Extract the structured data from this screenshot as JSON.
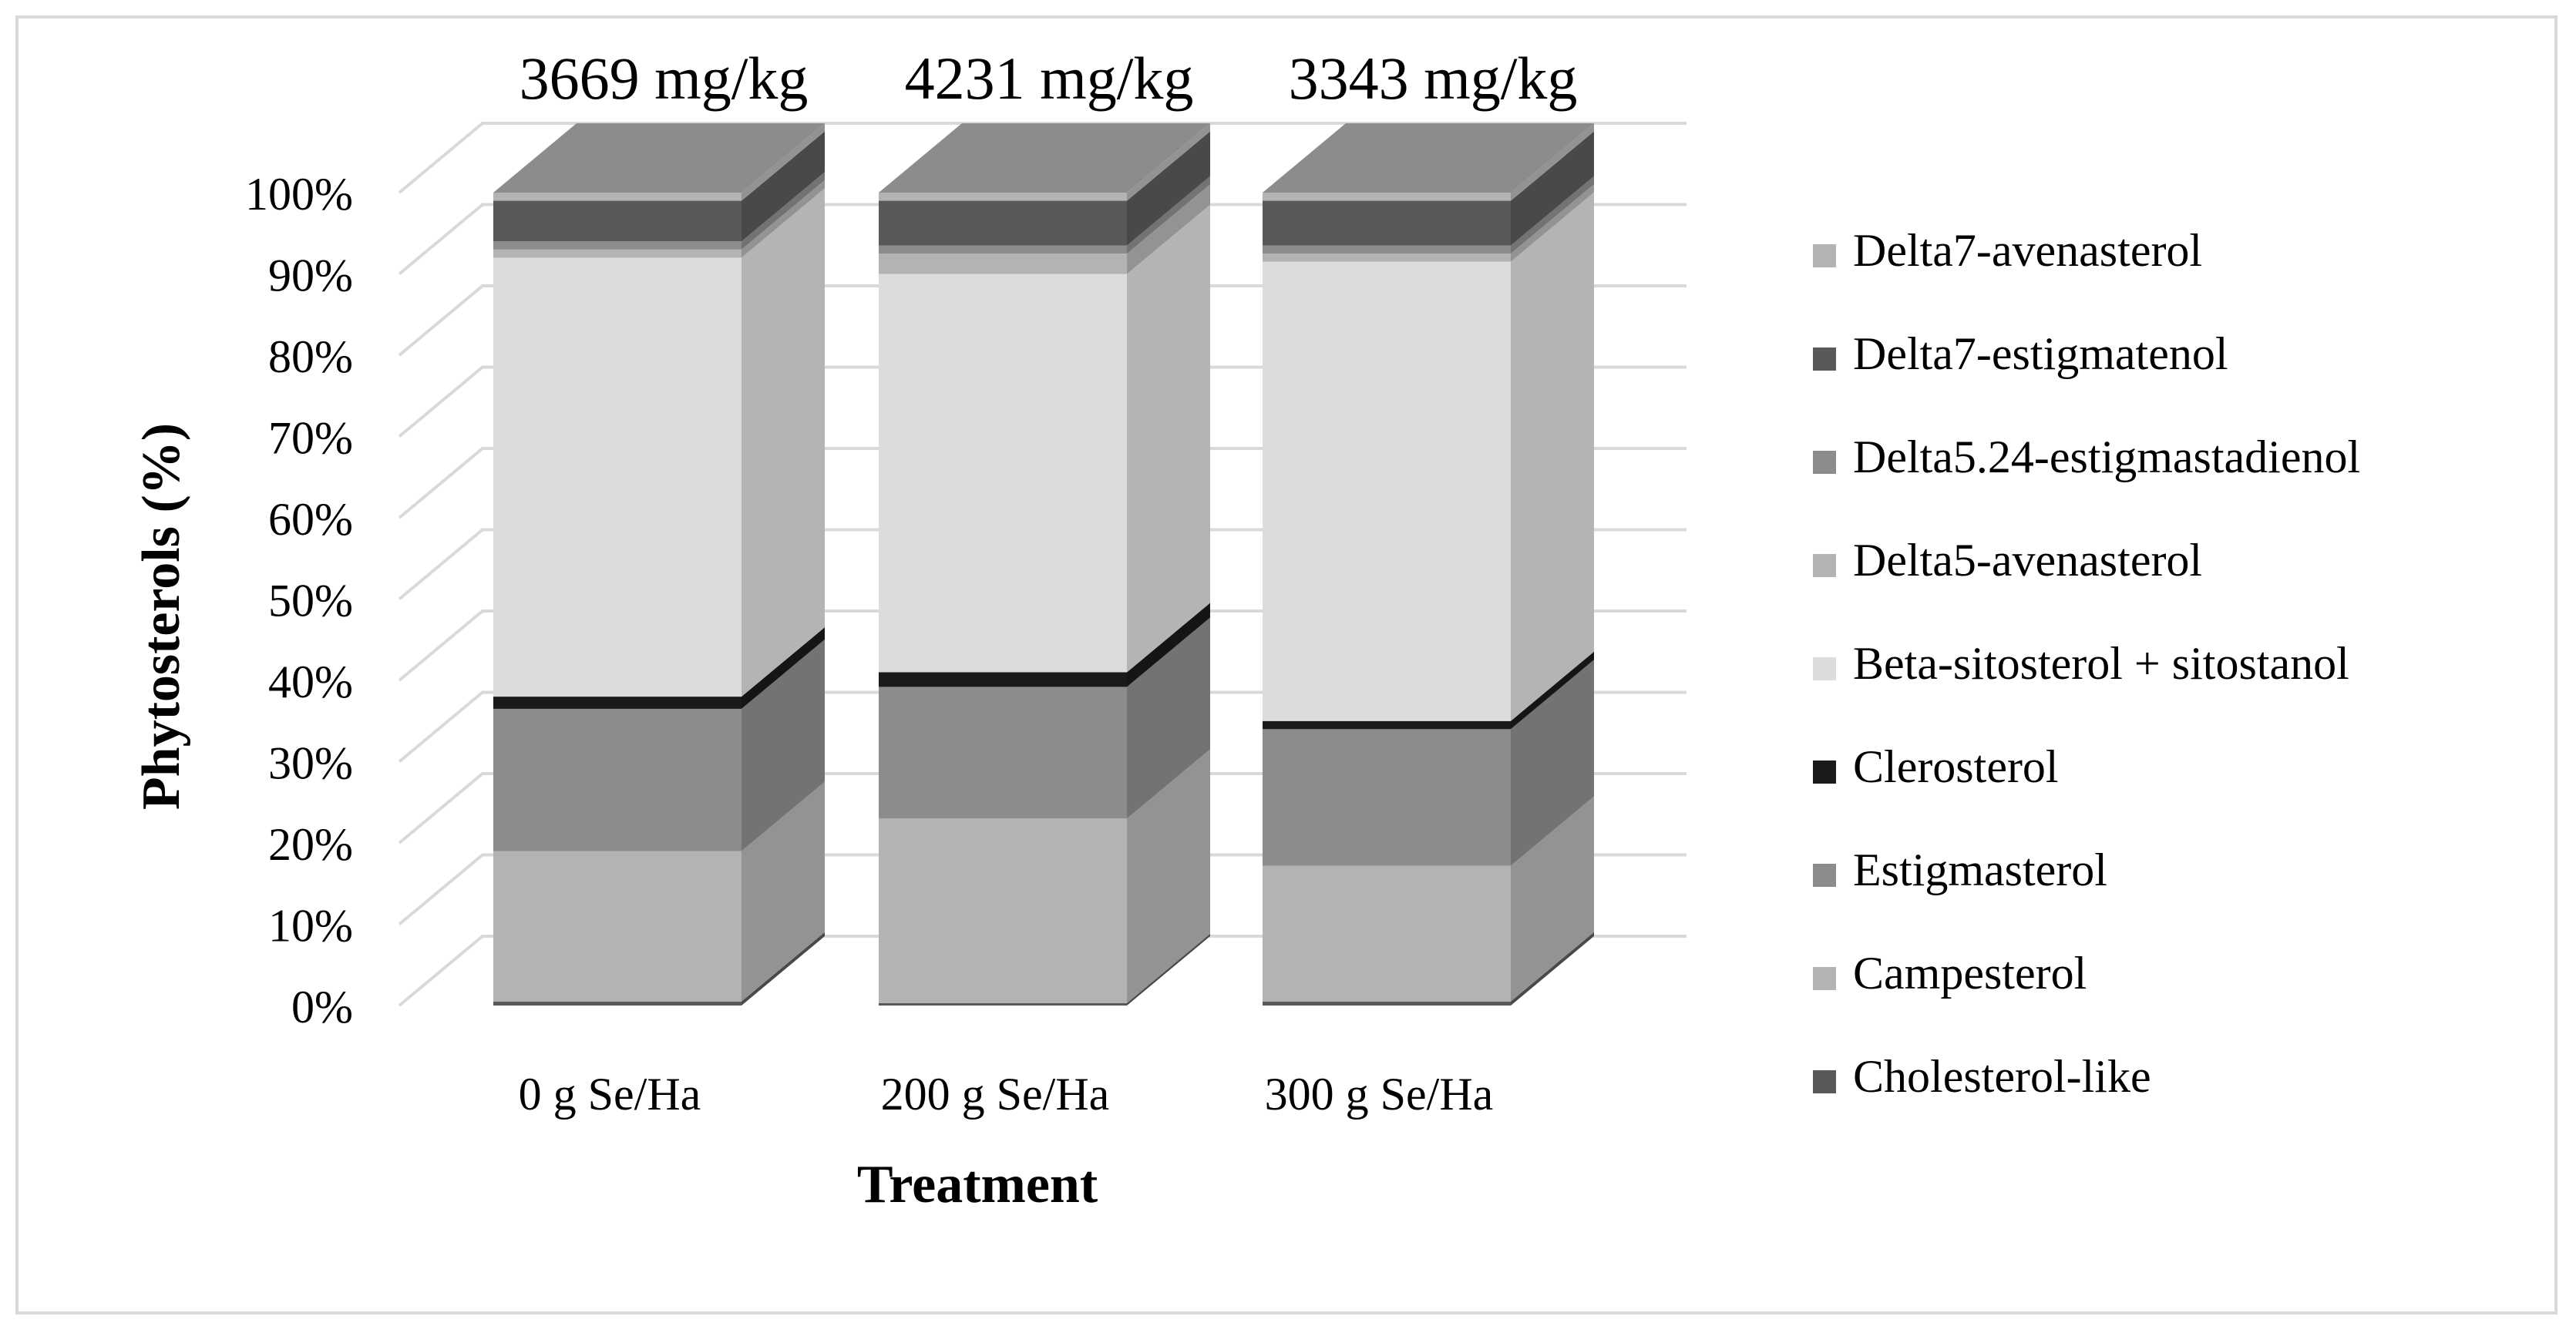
{
  "chart_data": {
    "type": "bar",
    "subtype": "stacked-100-percent-3d",
    "title": "",
    "xlabel": "Treatment",
    "ylabel": "Phytosterols (%)",
    "ylim": [
      0,
      100
    ],
    "ytick_labels": [
      "0%",
      "10%",
      "20%",
      "30%",
      "40%",
      "50%",
      "60%",
      "70%",
      "80%",
      "90%",
      "100%"
    ],
    "categories": [
      "0 g Se/Ha",
      "200 g Se/Ha",
      "300 g Se/Ha"
    ],
    "totals": [
      "3669 mg/kg",
      "4231 mg/kg",
      "3343 mg/kg"
    ],
    "legend_position": "right",
    "series": [
      {
        "name": "Cholesterol-like",
        "color": "#595959",
        "values": [
          0.5,
          0.3,
          0.5
        ]
      },
      {
        "name": "Campesterol",
        "color": "#b3b3b3",
        "values": [
          18.5,
          22.7,
          16.7
        ]
      },
      {
        "name": "Estigmasterol",
        "color": "#8c8c8c",
        "values": [
          17.5,
          16.2,
          16.8
        ]
      },
      {
        "name": "Clerosterol",
        "color": "#1a1a1a",
        "values": [
          1.5,
          1.8,
          1.0
        ]
      },
      {
        "name": "Beta-sitosterol + sitostanol",
        "color": "#dcdcdc",
        "values": [
          54.0,
          49.0,
          56.5
        ]
      },
      {
        "name": "Delta5-avenasterol",
        "color": "#b3b3b3",
        "values": [
          1.0,
          2.5,
          1.0
        ]
      },
      {
        "name": "Delta5.24-estigmastadienol",
        "color": "#8c8c8c",
        "values": [
          1.0,
          1.0,
          1.0
        ]
      },
      {
        "name": "Delta7-estigmatenol",
        "color": "#595959",
        "values": [
          5.0,
          5.5,
          5.5
        ]
      },
      {
        "name": "Delta7-avenasterol",
        "color": "#b3b3b3",
        "values": [
          1.0,
          1.0,
          1.0
        ]
      }
    ]
  }
}
